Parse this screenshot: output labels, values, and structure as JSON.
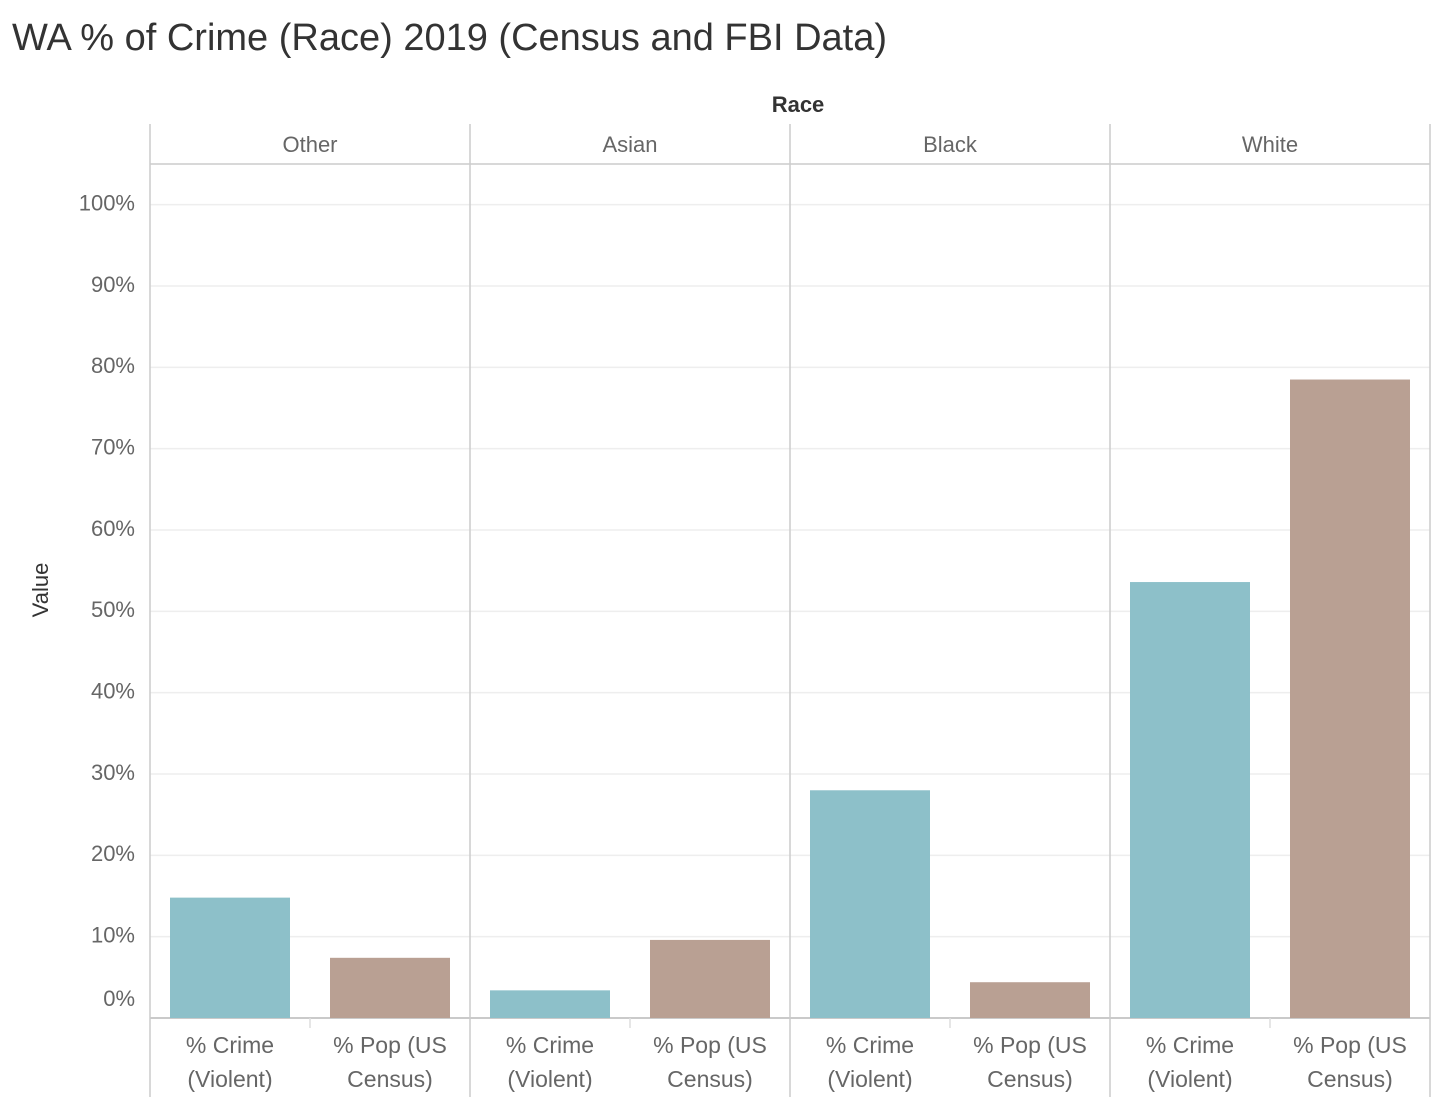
{
  "chart_data": {
    "type": "bar",
    "title": "WA % of Crime (Race) 2019 (Census and FBI Data)",
    "facet_label": "Race",
    "y_label": "Value",
    "categories": [
      "Other",
      "Asian",
      "Black",
      "White"
    ],
    "series": [
      {
        "name": "% Crime (Violent)",
        "color": "#8dc0c9",
        "values": [
          14.8,
          3.4,
          28.0,
          53.6
        ]
      },
      {
        "name": "% Pop (US Census)",
        "color": "#b9a093",
        "values": [
          7.4,
          9.6,
          4.4,
          78.5
        ]
      }
    ],
    "ylim": [
      0,
      105
    ],
    "yticks": [
      {
        "value": 0,
        "label": "0%"
      },
      {
        "value": 10,
        "label": "10%"
      },
      {
        "value": 20,
        "label": "20%"
      },
      {
        "value": 30,
        "label": "30%"
      },
      {
        "value": 40,
        "label": "40%"
      },
      {
        "value": 50,
        "label": "50%"
      },
      {
        "value": 60,
        "label": "60%"
      },
      {
        "value": 70,
        "label": "70%"
      },
      {
        "value": 80,
        "label": "80%"
      },
      {
        "value": 90,
        "label": "90%"
      },
      {
        "value": 100,
        "label": "100%"
      }
    ],
    "grid": true
  }
}
